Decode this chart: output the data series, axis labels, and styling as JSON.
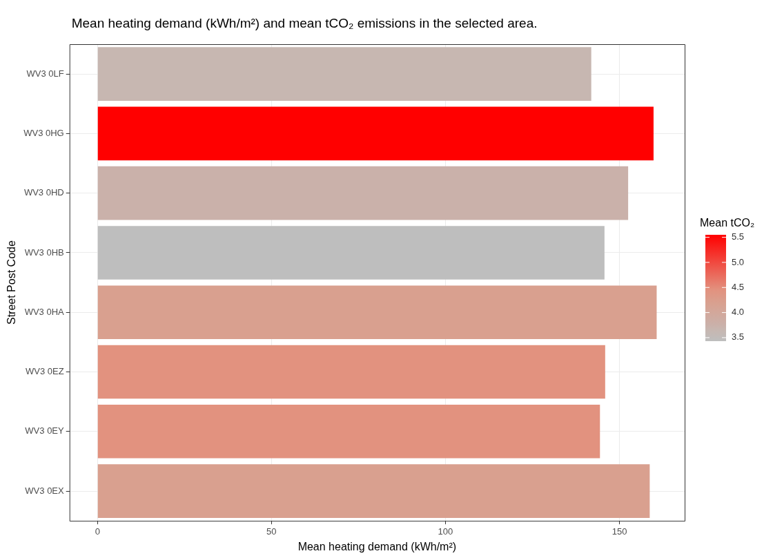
{
  "chart_data": {
    "type": "bar",
    "orientation": "horizontal",
    "title": "Mean heating demand (kWh/m²) and mean tCO₂ emissions in the selected area.",
    "xlabel": "Mean heating demand (kWh/m²)",
    "ylabel": "Street Post Code",
    "clabel": "Mean tCO₂",
    "categories": [
      "WV3 0LF",
      "WV3 0HG",
      "WV3 0HD",
      "WV3 0HB",
      "WV3 0HA",
      "WV3 0EZ",
      "WV3 0EY",
      "WV3 0EX"
    ],
    "values": [
      141.9,
      159.8,
      152.5,
      145.7,
      160.7,
      145.9,
      144.4,
      158.7
    ],
    "cvalues": [
      3.65,
      5.55,
      3.75,
      3.43,
      4.2,
      4.45,
      4.45,
      4.2
    ],
    "colors": [
      "#c7b7b1",
      "#ff0000",
      "#cab1aa",
      "#bebebe",
      "#d9a08f",
      "#e2927f",
      "#e2927f",
      "#d9a08f"
    ],
    "xlim": [
      -8.04,
      168.74
    ],
    "xticks": [
      0,
      50,
      100,
      150
    ],
    "clim": [
      3.43,
      5.55
    ],
    "cticks": [
      3.5,
      {
        "value": 4,
        "label": "4.0"
      },
      4.5,
      {
        "value": 5,
        "label": "5.0"
      },
      5.5
    ],
    "grid": true
  }
}
